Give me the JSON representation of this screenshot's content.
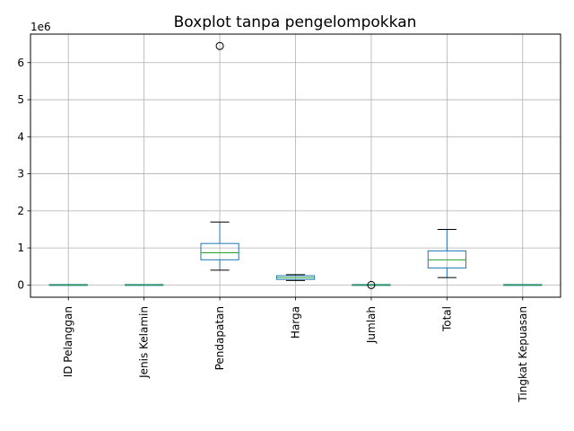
{
  "chart_data": {
    "type": "box",
    "title": "Boxplot tanpa pengelompokkan",
    "offset_label": "1e6",
    "xlabel": "",
    "ylabel": "",
    "ylim": [
      -0.33,
      6.77
    ],
    "y_ticks": [
      0,
      1,
      2,
      3,
      4,
      5,
      6
    ],
    "grid": true,
    "colors": {
      "box": "#1f77b4",
      "median": "#2ca02c",
      "grid": "#b0b0b0",
      "whisker": "#000000"
    },
    "boxes": [
      {
        "label": "ID Pelanggan",
        "whislo": 0.0,
        "q1": 0.0,
        "med": 0.0,
        "q3": 0.0,
        "whishi": 0.0,
        "fliers": []
      },
      {
        "label": "Jenis Kelamin",
        "whislo": 0.0,
        "q1": 0.0,
        "med": 0.0,
        "q3": 0.0,
        "whishi": 0.0,
        "fliers": []
      },
      {
        "label": "Pendapatan",
        "whislo": 0.4,
        "q1": 0.68,
        "med": 0.87,
        "q3": 1.12,
        "whishi": 1.7,
        "fliers": [
          6.45
        ]
      },
      {
        "label": "Harga",
        "whislo": 0.12,
        "q1": 0.15,
        "med": 0.2,
        "q3": 0.25,
        "whishi": 0.28,
        "fliers": []
      },
      {
        "label": "Jumlah",
        "whislo": 0.0,
        "q1": 0.0,
        "med": 0.0,
        "q3": 0.0,
        "whishi": 0.0,
        "fliers": [
          0.0
        ]
      },
      {
        "label": "Total",
        "whislo": 0.2,
        "q1": 0.46,
        "med": 0.68,
        "q3": 0.92,
        "whishi": 1.5,
        "fliers": []
      },
      {
        "label": "Tingkat Kepuasan",
        "whislo": 0.0,
        "q1": 0.0,
        "med": 0.0,
        "q3": 0.0,
        "whishi": 0.0,
        "fliers": []
      }
    ]
  }
}
